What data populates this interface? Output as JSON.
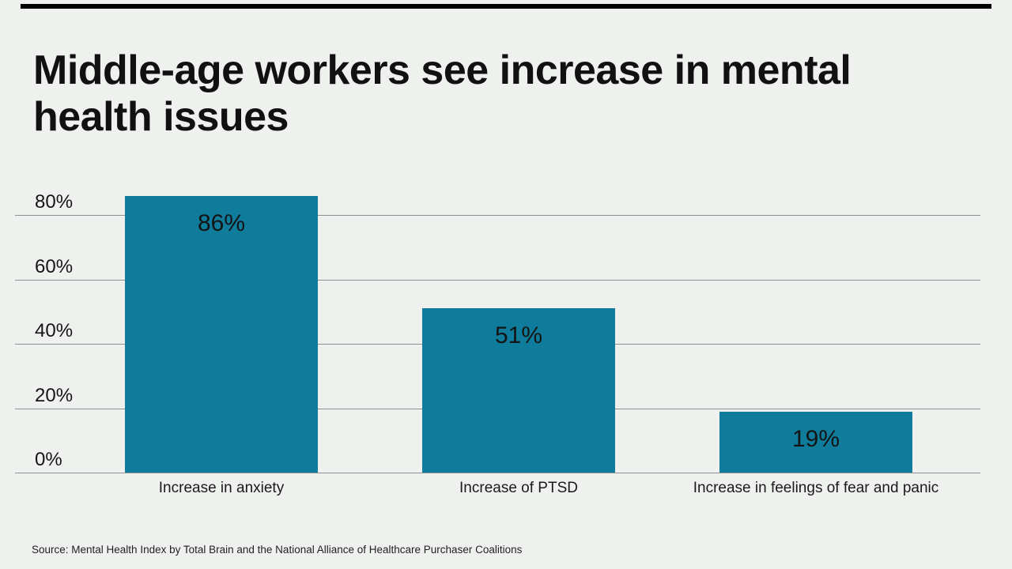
{
  "page": {
    "background_color": "#eff1ef",
    "top_rule_color": "#000000"
  },
  "title": {
    "full": "Middle-age workers see increase in mental health issues",
    "line1": "Middle-age workers see increase in mental",
    "line2": "health issues"
  },
  "chart_data": {
    "type": "bar",
    "title": "Middle-age workers see increase in mental health issues",
    "categories": [
      "Increase in anxiety",
      "Increase of PTSD",
      "Increase in feelings of fear and panic"
    ],
    "values": [
      86,
      51,
      19
    ],
    "value_labels": [
      "86%",
      "51%",
      "19%"
    ],
    "yticks": [
      0,
      20,
      40,
      60,
      80
    ],
    "ytick_labels": [
      "0%",
      "20%",
      "40%",
      "60%",
      "80%"
    ],
    "ylim": [
      0,
      88
    ],
    "grid": true,
    "legend": "none",
    "bar_color": "#0f7c9b",
    "gridline_color": "#8d9291",
    "xlabel": "",
    "ylabel": ""
  },
  "source": {
    "text": "Source: Mental Health Index by Total Brain and the National Alliance of Healthcare Purchaser Coalitions"
  }
}
